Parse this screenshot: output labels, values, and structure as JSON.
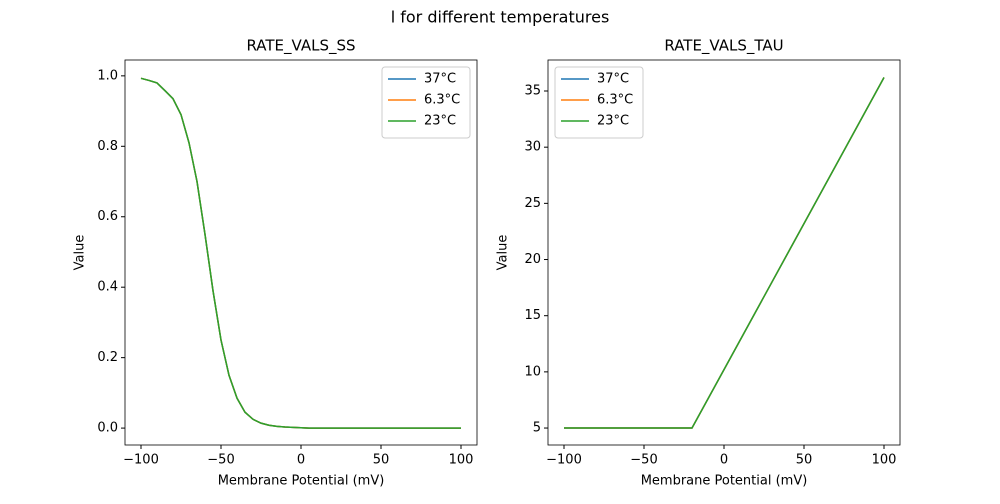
{
  "title": "l for different temperatures",
  "chart_data": [
    {
      "type": "line",
      "title": "RATE_VALS_SS",
      "xlabel": "Membrane Potential (mV)",
      "ylabel": "Value",
      "x": [
        -100,
        -95,
        -90,
        -85,
        -80,
        -75,
        -70,
        -65,
        -60,
        -55,
        -50,
        -45,
        -40,
        -35,
        -30,
        -25,
        -20,
        -15,
        -10,
        -5,
        0,
        5,
        10,
        15,
        20,
        25,
        30,
        35,
        40,
        45,
        50,
        55,
        60,
        65,
        70,
        75,
        80,
        85,
        90,
        95,
        100
      ],
      "series": [
        {
          "name": "37°C",
          "color": "#1f77b4",
          "values": [
            0.993,
            0.987,
            0.98,
            0.958,
            0.935,
            0.89,
            0.81,
            0.7,
            0.55,
            0.39,
            0.25,
            0.15,
            0.085,
            0.045,
            0.025,
            0.014,
            0.008,
            0.005,
            0.003,
            0.002,
            0.001,
            0,
            0,
            0,
            0,
            0,
            0,
            0,
            0,
            0,
            0,
            0,
            0,
            0,
            0,
            0,
            0,
            0,
            0,
            0,
            0
          ]
        },
        {
          "name": "6.3°C",
          "color": "#ff7f0e",
          "values": [
            0.993,
            0.987,
            0.98,
            0.958,
            0.935,
            0.89,
            0.81,
            0.7,
            0.55,
            0.39,
            0.25,
            0.15,
            0.085,
            0.045,
            0.025,
            0.014,
            0.008,
            0.005,
            0.003,
            0.002,
            0.001,
            0,
            0,
            0,
            0,
            0,
            0,
            0,
            0,
            0,
            0,
            0,
            0,
            0,
            0,
            0,
            0,
            0,
            0,
            0,
            0
          ]
        },
        {
          "name": "23°C",
          "color": "#2ca02c",
          "values": [
            0.993,
            0.987,
            0.98,
            0.958,
            0.935,
            0.89,
            0.81,
            0.7,
            0.55,
            0.39,
            0.25,
            0.15,
            0.085,
            0.045,
            0.025,
            0.014,
            0.008,
            0.005,
            0.003,
            0.002,
            0.001,
            0,
            0,
            0,
            0,
            0,
            0,
            0,
            0,
            0,
            0,
            0,
            0,
            0,
            0,
            0,
            0,
            0,
            0,
            0,
            0
          ]
        }
      ],
      "xlim": [
        -110,
        110
      ],
      "xticks": [
        {
          "value": -100,
          "label": "−100"
        },
        {
          "value": -50,
          "label": "−50"
        },
        0,
        50,
        100
      ],
      "ylim": [
        -0.048,
        1.045
      ],
      "yticks": [
        {
          "value": 0,
          "label": "0.0"
        },
        0.2,
        0.4,
        0.6,
        0.8,
        {
          "value": 1,
          "label": "1.0"
        }
      ],
      "legend": "upper right"
    },
    {
      "type": "line",
      "title": "RATE_VALS_TAU",
      "xlabel": "Membrane Potential (mV)",
      "ylabel": "Value",
      "x": [
        -100,
        -20,
        100
      ],
      "series": [
        {
          "name": "37°C",
          "color": "#1f77b4",
          "values": [
            5,
            5,
            36.2
          ]
        },
        {
          "name": "6.3°C",
          "color": "#ff7f0e",
          "values": [
            5,
            5,
            36.2
          ]
        },
        {
          "name": "23°C",
          "color": "#2ca02c",
          "values": [
            5,
            5,
            36.2
          ]
        }
      ],
      "xlim": [
        -110,
        110
      ],
      "xticks": [
        {
          "value": -100,
          "label": "−100"
        },
        {
          "value": -50,
          "label": "−50"
        },
        0,
        50,
        100
      ],
      "ylim": [
        3.49,
        37.76
      ],
      "yticks": [
        5,
        10,
        15,
        20,
        25,
        30,
        35
      ],
      "legend": "upper left"
    }
  ]
}
